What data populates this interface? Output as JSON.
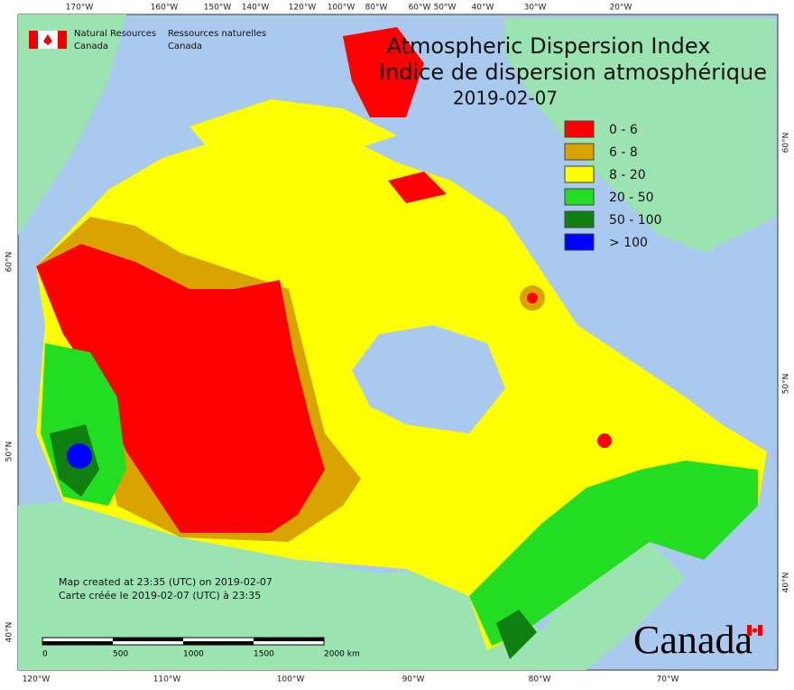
{
  "header": {
    "title": "Atmospheric Dispersion Index",
    "title_fr": "Indice de dispersion atmosphérique",
    "date": "2019-02-07"
  },
  "logo": {
    "en_line1": "Natural Resources",
    "en_line2": "Canada",
    "fr_line1": "Ressources naturelles",
    "fr_line2": "Canada"
  },
  "legend": [
    {
      "label": "0 - 6",
      "color": "#ff0000"
    },
    {
      "label": "6 - 8",
      "color": "#d9a300"
    },
    {
      "label": "8 - 20",
      "color": "#ffff00"
    },
    {
      "label": "20 - 50",
      "color": "#22dd22"
    },
    {
      "label": "50 - 100",
      "color": "#0f7f0f"
    },
    {
      "label": "> 100",
      "color": "#0000ff"
    }
  ],
  "top_labels": [
    "170°W",
    "160°W",
    "150°W",
    "140°W",
    "120°W",
    "100°W",
    "80°W",
    "60°W",
    "50°W",
    "40°W",
    "30°W",
    "20°W"
  ],
  "bottom_labels": [
    "120°W",
    "110°W",
    "100°W",
    "90°W",
    "80°W",
    "70°W"
  ],
  "left_labels": [
    "60°N",
    "50°N",
    "40°N"
  ],
  "right_labels": [
    "60°N",
    "50°N",
    "40°N"
  ],
  "footer": {
    "line1": "Map created at 23:35 (UTC) on 2019-02-07",
    "line2": "Carte créée le 2019-02-07 (UTC) à 23:35"
  },
  "scale": [
    "0",
    "500",
    "1000",
    "1500",
    "2000 km"
  ],
  "wordmark": "Canada"
}
